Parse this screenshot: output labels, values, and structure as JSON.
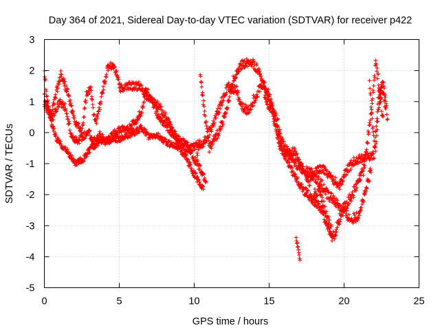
{
  "chart_data": {
    "type": "scatter",
    "title": "Day 364 of 2021, Sidereal Day-to-day VTEC variation (SDTVAR) for receiver p422",
    "xlabel": "GPS time / hours",
    "ylabel": "SDTVAR / TECUs",
    "xlim": [
      0,
      25
    ],
    "ylim": [
      -5,
      3
    ],
    "xticks": [
      0,
      5,
      10,
      15,
      20,
      25
    ],
    "yticks": [
      -5,
      -4,
      -3,
      -2,
      -1,
      0,
      1,
      2,
      3
    ],
    "x_tick_labels": [
      "0",
      "5",
      "10",
      "15",
      "20",
      "25"
    ],
    "y_tick_labels": [
      "-5",
      "-4",
      "-3",
      "-2",
      "-1",
      "0",
      "1",
      "2",
      "3"
    ],
    "grid": true,
    "legend": "none",
    "marker": "plus",
    "color": "#ff0000",
    "sample_interval_hours": 0.025,
    "series": [
      {
        "name": "track-1",
        "x_start": 0.0,
        "x_end": 10.6,
        "knots": [
          [
            0.0,
            1.2
          ],
          [
            0.3,
            0.6
          ],
          [
            0.8,
            -0.2
          ],
          [
            1.5,
            -0.6
          ],
          [
            2.1,
            -1.0
          ],
          [
            2.6,
            -0.85
          ],
          [
            3.2,
            -0.45
          ],
          [
            3.8,
            -0.25
          ],
          [
            4.6,
            -0.25
          ],
          [
            5.2,
            -0.15
          ],
          [
            5.8,
            -0.05
          ],
          [
            6.5,
            0.15
          ],
          [
            7.0,
            -0.15
          ],
          [
            7.6,
            -0.1
          ],
          [
            8.2,
            -0.35
          ],
          [
            8.8,
            -0.4
          ],
          [
            9.4,
            -0.75
          ],
          [
            9.9,
            -1.25
          ],
          [
            10.5,
            -1.75
          ],
          [
            10.6,
            -1.8
          ]
        ],
        "jitter": 0.1
      },
      {
        "name": "track-2",
        "x_start": 0.0,
        "x_end": 10.4,
        "knots": [
          [
            0.0,
            2.0
          ],
          [
            0.2,
            1.0
          ],
          [
            0.5,
            0.4
          ],
          [
            1.0,
            1.0
          ],
          [
            1.4,
            0.8
          ],
          [
            1.8,
            -0.1
          ],
          [
            2.2,
            -0.3
          ],
          [
            2.6,
            -0.1
          ],
          [
            3.0,
            0.0
          ],
          [
            3.3,
            -0.3
          ],
          [
            3.7,
            -0.05
          ],
          [
            4.1,
            -0.3
          ],
          [
            4.5,
            -0.1
          ],
          [
            5.0,
            0.1
          ],
          [
            5.4,
            0.1
          ],
          [
            6.0,
            0.3
          ],
          [
            6.5,
            0.7
          ],
          [
            6.8,
            1.4
          ],
          [
            7.2,
            1.0
          ],
          [
            7.6,
            0.5
          ],
          [
            8.0,
            0.3
          ],
          [
            8.5,
            0.0
          ],
          [
            9.0,
            -0.4
          ],
          [
            9.6,
            -0.55
          ],
          [
            10.0,
            -0.45
          ],
          [
            10.4,
            -0.3
          ]
        ],
        "jitter": 0.12
      },
      {
        "name": "track-3",
        "x_start": 0.0,
        "x_end": 10.8,
        "knots": [
          [
            0.0,
            1.0
          ],
          [
            0.4,
            0.5
          ],
          [
            1.1,
            1.9
          ],
          [
            1.5,
            1.4
          ],
          [
            2.0,
            0.4
          ],
          [
            2.5,
            0.0
          ],
          [
            2.8,
            1.2
          ],
          [
            3.1,
            1.4
          ],
          [
            3.3,
            0.6
          ],
          [
            3.5,
            0.4
          ],
          [
            4.0,
            1.6
          ],
          [
            4.3,
            2.2
          ],
          [
            4.7,
            2.1
          ],
          [
            5.1,
            1.4
          ],
          [
            5.6,
            1.5
          ],
          [
            6.3,
            1.5
          ],
          [
            6.8,
            1.2
          ],
          [
            7.3,
            1.0
          ],
          [
            7.7,
            0.8
          ],
          [
            8.2,
            0.4
          ],
          [
            8.6,
            0.0
          ],
          [
            9.0,
            -0.2
          ],
          [
            9.5,
            -0.4
          ],
          [
            10.2,
            -1.0
          ],
          [
            10.8,
            -1.6
          ]
        ],
        "jitter": 0.14
      },
      {
        "name": "track-4",
        "x_start": 10.4,
        "x_end": 19.2,
        "knots": [
          [
            10.4,
            1.9
          ],
          [
            10.6,
            1.0
          ],
          [
            11.0,
            -0.5
          ],
          [
            11.6,
            0.0
          ],
          [
            12.1,
            0.6
          ],
          [
            12.6,
            1.7
          ],
          [
            13.2,
            2.2
          ],
          [
            13.8,
            2.3
          ],
          [
            14.3,
            2.0
          ],
          [
            14.8,
            1.3
          ],
          [
            15.2,
            0.8
          ],
          [
            15.5,
            0.2
          ],
          [
            15.8,
            -0.4
          ],
          [
            16.2,
            -0.9
          ],
          [
            16.7,
            -1.4
          ],
          [
            17.2,
            -1.8
          ],
          [
            17.8,
            -2.1
          ],
          [
            18.4,
            -2.4
          ],
          [
            19.0,
            -3.1
          ],
          [
            19.2,
            -3.5
          ]
        ],
        "jitter": 0.14
      },
      {
        "name": "track-5",
        "x_start": 10.2,
        "x_end": 21.8,
        "knots": [
          [
            10.2,
            -0.6
          ],
          [
            10.7,
            -0.3
          ],
          [
            11.2,
            0.2
          ],
          [
            11.7,
            0.8
          ],
          [
            12.2,
            1.5
          ],
          [
            12.8,
            1.4
          ],
          [
            13.2,
            0.8
          ],
          [
            13.6,
            0.7
          ],
          [
            14.2,
            1.3
          ],
          [
            14.6,
            1.6
          ],
          [
            15.0,
            1.2
          ],
          [
            15.5,
            0.4
          ],
          [
            15.9,
            -0.3
          ],
          [
            16.3,
            -0.7
          ],
          [
            16.8,
            -1.0
          ],
          [
            17.3,
            -1.2
          ],
          [
            17.8,
            -1.3
          ],
          [
            18.4,
            -1.6
          ],
          [
            18.9,
            -2.0
          ],
          [
            19.4,
            -2.2
          ],
          [
            19.9,
            -2.5
          ],
          [
            20.4,
            -2.8
          ],
          [
            20.9,
            -2.7
          ],
          [
            21.4,
            -2.0
          ],
          [
            21.8,
            -1.2
          ]
        ],
        "jitter": 0.16
      },
      {
        "name": "track-6",
        "x_start": 14.7,
        "x_end": 22.8,
        "knots": [
          [
            14.7,
            1.1
          ],
          [
            15.2,
            0.7
          ],
          [
            15.7,
            -0.5
          ],
          [
            16.2,
            -0.7
          ],
          [
            16.7,
            -0.6
          ],
          [
            17.2,
            -1.2
          ],
          [
            17.7,
            -1.6
          ],
          [
            18.2,
            -1.2
          ],
          [
            18.7,
            -1.2
          ],
          [
            19.2,
            -1.5
          ],
          [
            19.7,
            -1.7
          ],
          [
            20.2,
            -1.2
          ],
          [
            20.7,
            -0.9
          ],
          [
            21.2,
            -0.8
          ],
          [
            21.6,
            -0.8
          ],
          [
            22.0,
            -0.7
          ],
          [
            22.3,
            1.2
          ],
          [
            22.5,
            1.5
          ],
          [
            22.8,
            0.8
          ]
        ],
        "jitter": 0.14
      },
      {
        "name": "track-7",
        "x_start": 17.8,
        "x_end": 22.6,
        "knots": [
          [
            17.8,
            -2.2
          ],
          [
            18.3,
            -1.8
          ],
          [
            18.8,
            -2.6
          ],
          [
            19.3,
            -3.4
          ],
          [
            19.8,
            -2.6
          ],
          [
            20.3,
            -2.2
          ],
          [
            20.8,
            -1.8
          ],
          [
            21.3,
            -1.2
          ],
          [
            21.8,
            0.6
          ],
          [
            22.1,
            2.2
          ],
          [
            22.3,
            1.7
          ],
          [
            22.6,
            0.4
          ]
        ],
        "jitter": 0.18
      },
      {
        "name": "track-8",
        "x_start": 21.7,
        "x_end": 22.9,
        "knots": [
          [
            21.7,
            1.7
          ],
          [
            21.9,
            0.2
          ],
          [
            22.1,
            -0.6
          ],
          [
            22.3,
            0.8
          ],
          [
            22.6,
            1.7
          ],
          [
            22.9,
            0.4
          ]
        ],
        "jitter": 0.15
      },
      {
        "name": "track-9",
        "x_start": 16.8,
        "x_end": 17.05,
        "knots": [
          [
            16.8,
            -3.4
          ],
          [
            16.95,
            -3.8
          ],
          [
            17.05,
            -4.1
          ]
        ],
        "jitter": 0.06
      }
    ]
  }
}
